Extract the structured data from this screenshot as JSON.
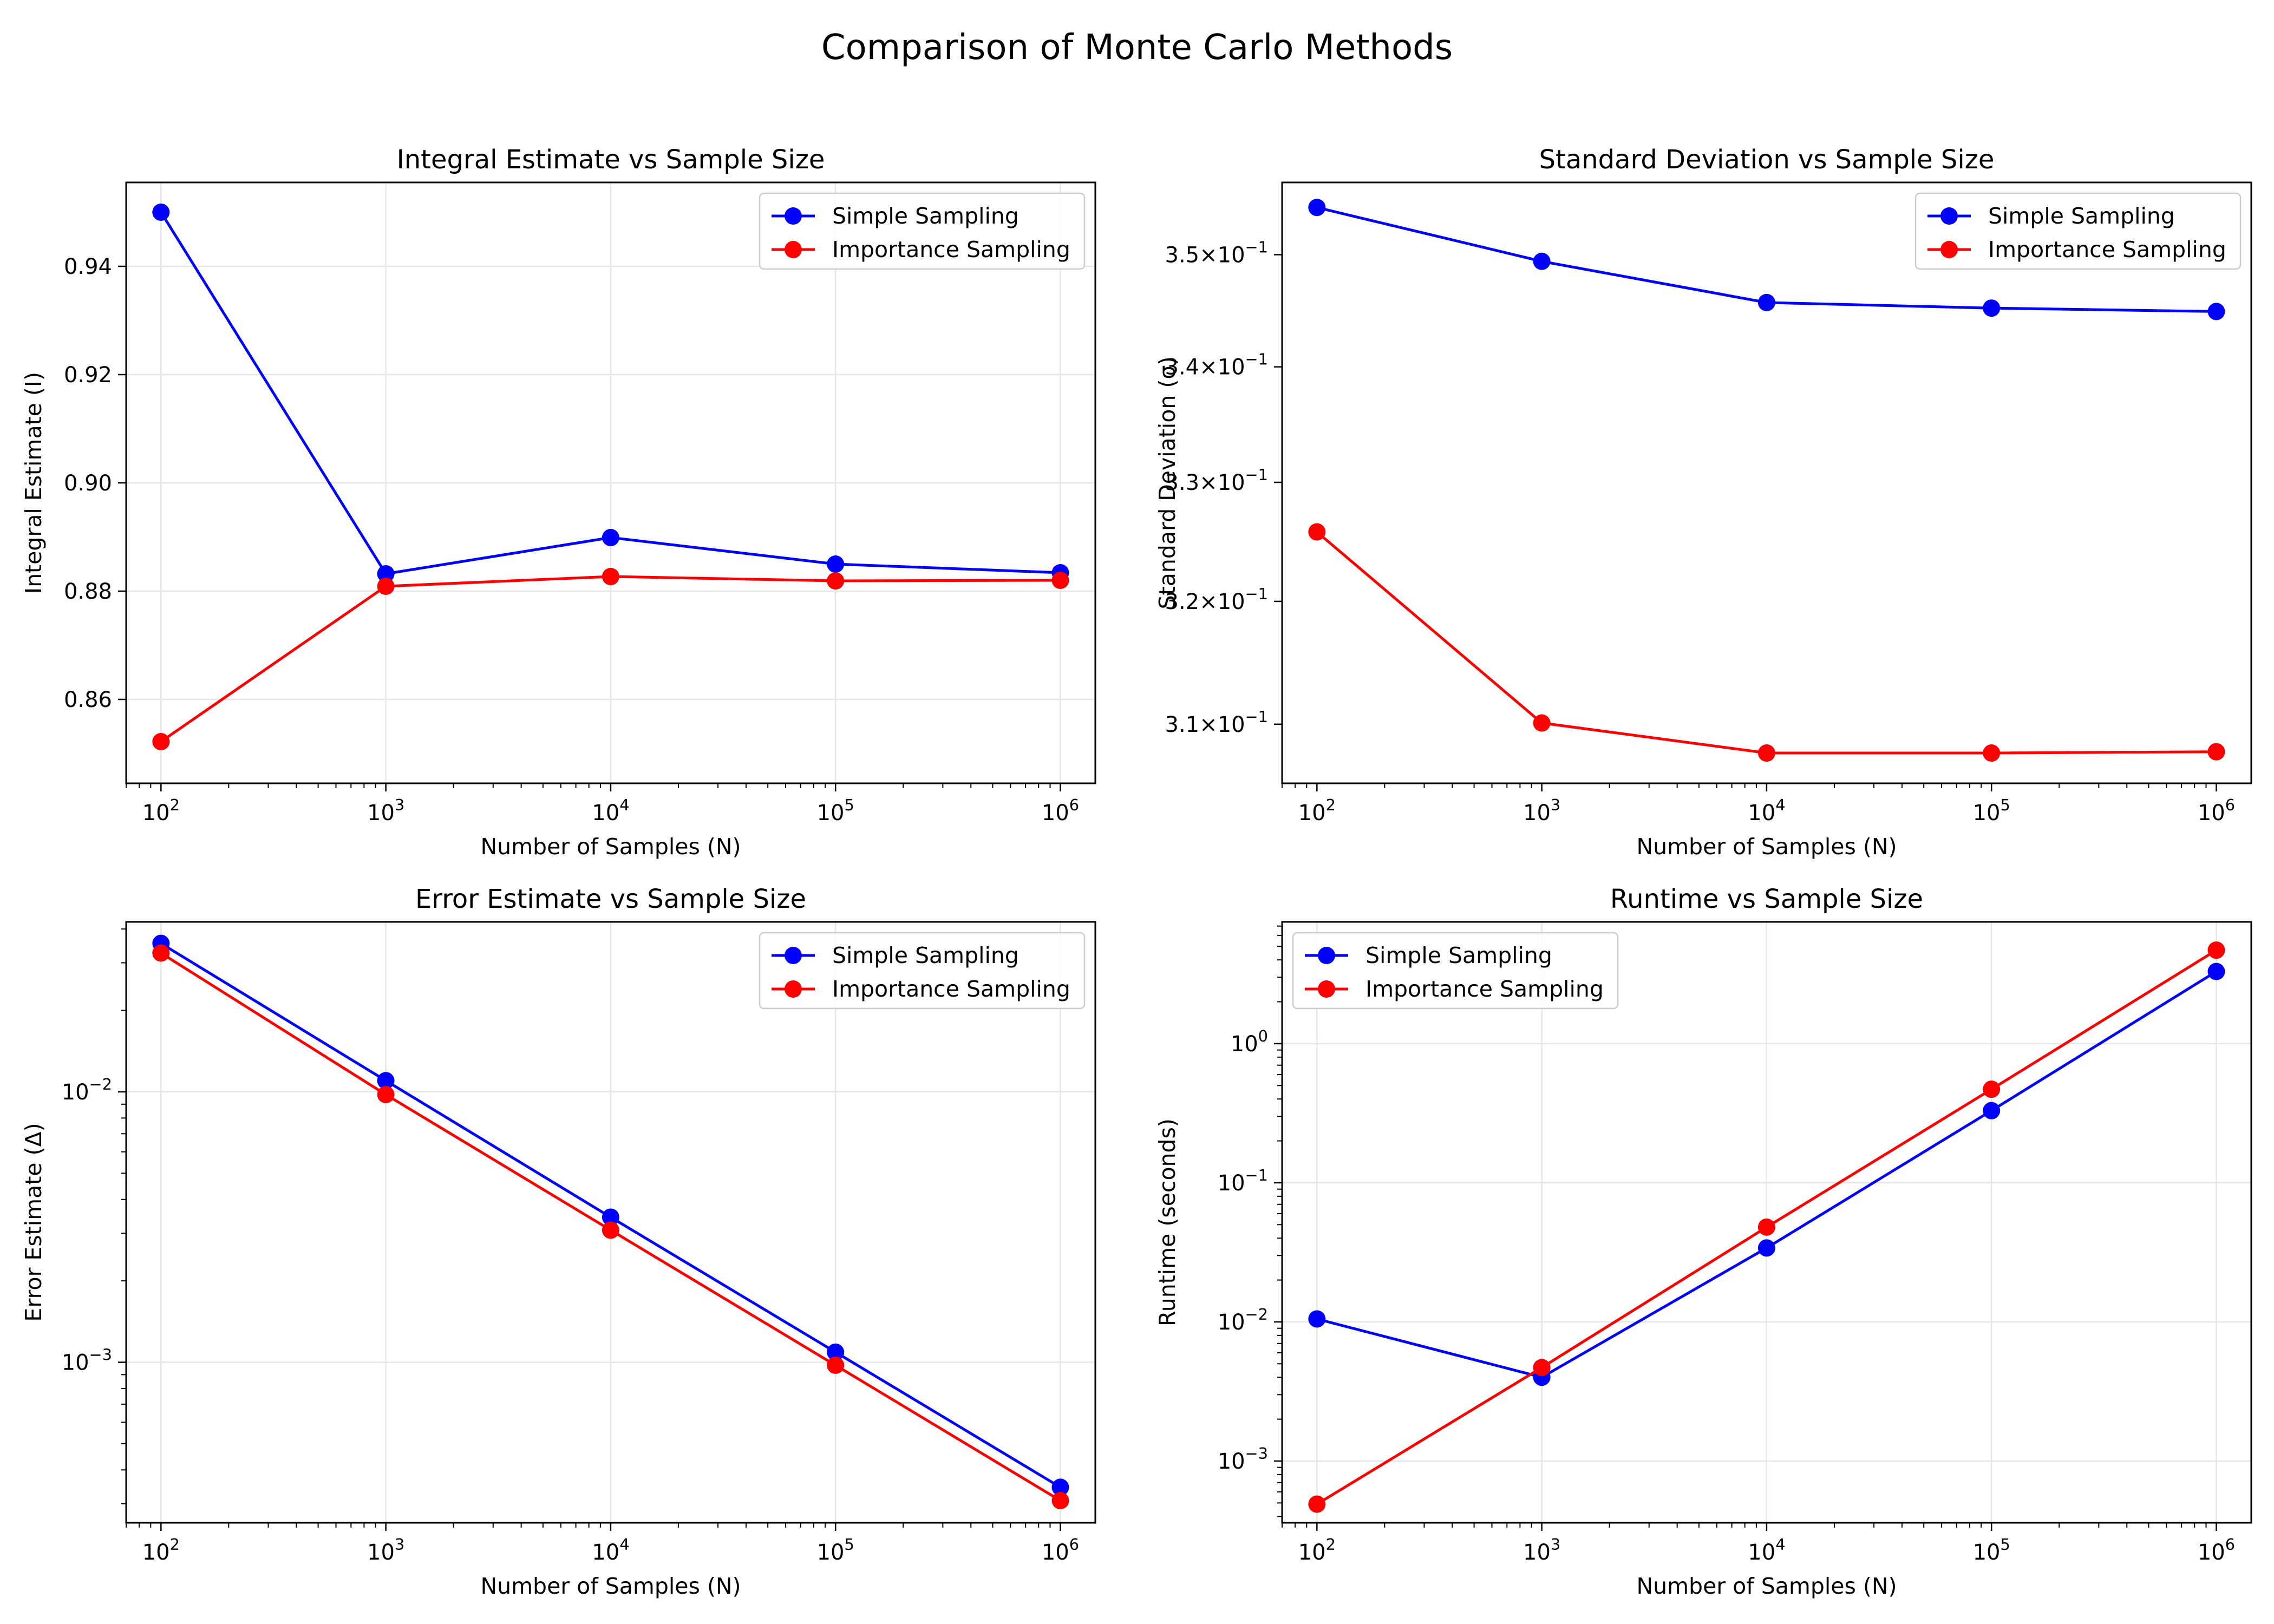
{
  "suptitle": "Comparison of Monte Carlo Methods",
  "colors": {
    "simple": "#0000ff",
    "importance": "#ff0000",
    "grid": "#e6e6e6",
    "axes": "#000000"
  },
  "chart_data": [
    {
      "type": "line",
      "title": "Integral Estimate vs Sample Size",
      "xlabel": "Number of Samples (N)",
      "ylabel": "Integral Estimate (I)",
      "xscale": "log",
      "yscale": "linear",
      "xlim": [
        70,
        1430000
      ],
      "ylim": [
        0.8445,
        0.9555
      ],
      "x": [
        100,
        1000,
        10000,
        100000,
        1000000
      ],
      "xticks": [
        {
          "value": 100,
          "base": "10",
          "exp": "2"
        },
        {
          "value": 1000,
          "base": "10",
          "exp": "3"
        },
        {
          "value": 10000,
          "base": "10",
          "exp": "4"
        },
        {
          "value": 100000,
          "base": "10",
          "exp": "5"
        },
        {
          "value": 1000000,
          "base": "10",
          "exp": "6"
        }
      ],
      "yticks": [
        {
          "value": 0.86,
          "label": "0.86"
        },
        {
          "value": 0.88,
          "label": "0.88"
        },
        {
          "value": 0.9,
          "label": "0.90"
        },
        {
          "value": 0.92,
          "label": "0.92"
        },
        {
          "value": 0.94,
          "label": "0.94"
        }
      ],
      "grid": true,
      "legend": "top-right",
      "series": [
        {
          "name": "Simple Sampling",
          "color": "#0000ff",
          "values": [
            0.95,
            0.8832,
            0.8899,
            0.885,
            0.8834
          ]
        },
        {
          "name": "Importance Sampling",
          "color": "#ff0000",
          "values": [
            0.8522,
            0.8809,
            0.8827,
            0.8819,
            0.882
          ]
        }
      ]
    },
    {
      "type": "line",
      "title": "Standard Deviation vs Sample Size",
      "xlabel": "Number of Samples (N)",
      "ylabel": "Standard Deviation (σ)",
      "xscale": "log",
      "yscale": "log",
      "xlim": [
        70,
        1430000
      ],
      "ylim": [
        0.3053,
        0.3566
      ],
      "x": [
        100,
        1000,
        10000,
        100000,
        1000000
      ],
      "xticks": [
        {
          "value": 100,
          "base": "10",
          "exp": "2"
        },
        {
          "value": 1000,
          "base": "10",
          "exp": "3"
        },
        {
          "value": 10000,
          "base": "10",
          "exp": "4"
        },
        {
          "value": 100000,
          "base": "10",
          "exp": "5"
        },
        {
          "value": 1000000,
          "base": "10",
          "exp": "6"
        }
      ],
      "yticks": [
        {
          "value": 0.31,
          "mant": "3.1",
          "base": "10",
          "exp": "−1"
        },
        {
          "value": 0.32,
          "mant": "3.2",
          "base": "10",
          "exp": "−1"
        },
        {
          "value": 0.33,
          "mant": "3.3",
          "base": "10",
          "exp": "−1"
        },
        {
          "value": 0.34,
          "mant": "3.4",
          "base": "10",
          "exp": "−1"
        },
        {
          "value": 0.35,
          "mant": "3.5",
          "base": "10",
          "exp": "−1"
        }
      ],
      "grid": false,
      "legend": "top-right",
      "series": [
        {
          "name": "Simple Sampling",
          "color": "#0000ff",
          "values": [
            0.3543,
            0.3494,
            0.3457,
            0.3452,
            0.3449
          ]
        },
        {
          "name": "Importance Sampling",
          "color": "#ff0000",
          "values": [
            0.3258,
            0.3101,
            0.3077,
            0.3077,
            0.3078
          ]
        }
      ]
    },
    {
      "type": "line",
      "title": "Error Estimate vs Sample Size",
      "xlabel": "Number of Samples (N)",
      "ylabel": "Error Estimate (Δ)",
      "xscale": "log",
      "yscale": "log",
      "xlim": [
        70,
        1430000
      ],
      "ylim": [
        0.000255,
        0.0425
      ],
      "x": [
        100,
        1000,
        10000,
        100000,
        1000000
      ],
      "xticks": [
        {
          "value": 100,
          "base": "10",
          "exp": "2"
        },
        {
          "value": 1000,
          "base": "10",
          "exp": "3"
        },
        {
          "value": 10000,
          "base": "10",
          "exp": "4"
        },
        {
          "value": 100000,
          "base": "10",
          "exp": "5"
        },
        {
          "value": 1000000,
          "base": "10",
          "exp": "6"
        }
      ],
      "yticks": [
        {
          "value": 0.001,
          "base": "10",
          "exp": "−3"
        },
        {
          "value": 0.01,
          "base": "10",
          "exp": "−2"
        }
      ],
      "grid": true,
      "legend": "top-right",
      "series": [
        {
          "name": "Simple Sampling",
          "color": "#0000ff",
          "values": [
            0.0354,
            0.011,
            0.00344,
            0.00109,
            0.000345
          ]
        },
        {
          "name": "Importance Sampling",
          "color": "#ff0000",
          "values": [
            0.0326,
            0.00977,
            0.00308,
            0.000975,
            0.000308
          ]
        }
      ]
    },
    {
      "type": "line",
      "title": "Runtime vs Sample Size",
      "xlabel": "Number of Samples (N)",
      "ylabel": "Runtime (seconds)",
      "xscale": "log",
      "yscale": "log",
      "xlim": [
        70,
        1430000
      ],
      "ylim": [
        0.00036,
        7.5
      ],
      "x": [
        100,
        1000,
        10000,
        100000,
        1000000
      ],
      "xticks": [
        {
          "value": 100,
          "base": "10",
          "exp": "2"
        },
        {
          "value": 1000,
          "base": "10",
          "exp": "3"
        },
        {
          "value": 10000,
          "base": "10",
          "exp": "4"
        },
        {
          "value": 100000,
          "base": "10",
          "exp": "5"
        },
        {
          "value": 1000000,
          "base": "10",
          "exp": "6"
        }
      ],
      "yticks": [
        {
          "value": 0.001,
          "base": "10",
          "exp": "−3"
        },
        {
          "value": 0.01,
          "base": "10",
          "exp": "−2"
        },
        {
          "value": 0.1,
          "base": "10",
          "exp": "−1"
        },
        {
          "value": 1,
          "base": "10",
          "exp": "0"
        }
      ],
      "grid": true,
      "legend": "top-left",
      "series": [
        {
          "name": "Simple Sampling",
          "color": "#0000ff",
          "values": [
            0.0105,
            0.004,
            0.034,
            0.33,
            3.3
          ]
        },
        {
          "name": "Importance Sampling",
          "color": "#ff0000",
          "values": [
            0.00049,
            0.0047,
            0.048,
            0.47,
            4.7
          ]
        }
      ]
    }
  ]
}
